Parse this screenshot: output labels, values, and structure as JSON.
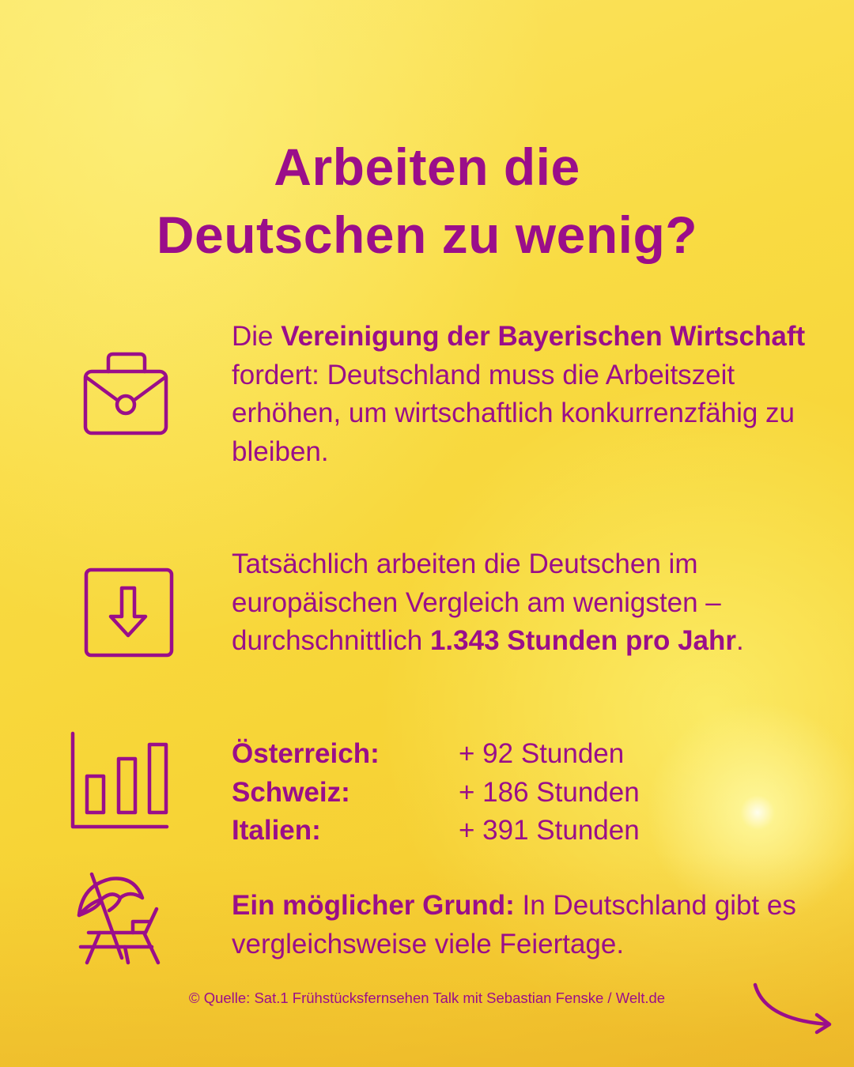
{
  "title": {
    "line1": "Arbeiten die",
    "line2": "Deutschen zu wenig?"
  },
  "block1": {
    "prefix": "Die ",
    "bold": "Vereinigung der Bayerischen Wirtschaft",
    "rest": " fordert: Deutschland muss die Arbeitszeit erhöhen, um wirtschaftlich konkurrenzfähig zu bleiben."
  },
  "block2": {
    "text": "Tatsächlich arbeiten die Deutschen im europäischen Vergleich am wenigsten – durchschnittlich ",
    "bold": "1.343 Stunden pro Jahr",
    "end": "."
  },
  "comparison": [
    {
      "country": "Österreich:",
      "value": "+ 92 Stunden"
    },
    {
      "country": "Schweiz:",
      "value": "+ 186 Stunden"
    },
    {
      "country": "Italien:",
      "value": "+ 391 Stunden"
    }
  ],
  "block4": {
    "bold": "Ein möglicher Grund:",
    "rest": " In Deutschland gibt es vergleichsweise viele Feiertage."
  },
  "source": "© Quelle: Sat.1 Frühstücksfernsehen Talk mit Sebastian Fenske / Welt.de",
  "icons": [
    "briefcase-icon",
    "arrow-down-box-icon",
    "bar-chart-icon",
    "beach-chair-umbrella-icon",
    "next-arrow-icon"
  ],
  "colors": {
    "text": "#9a0e8a",
    "background": "#f9db43"
  }
}
